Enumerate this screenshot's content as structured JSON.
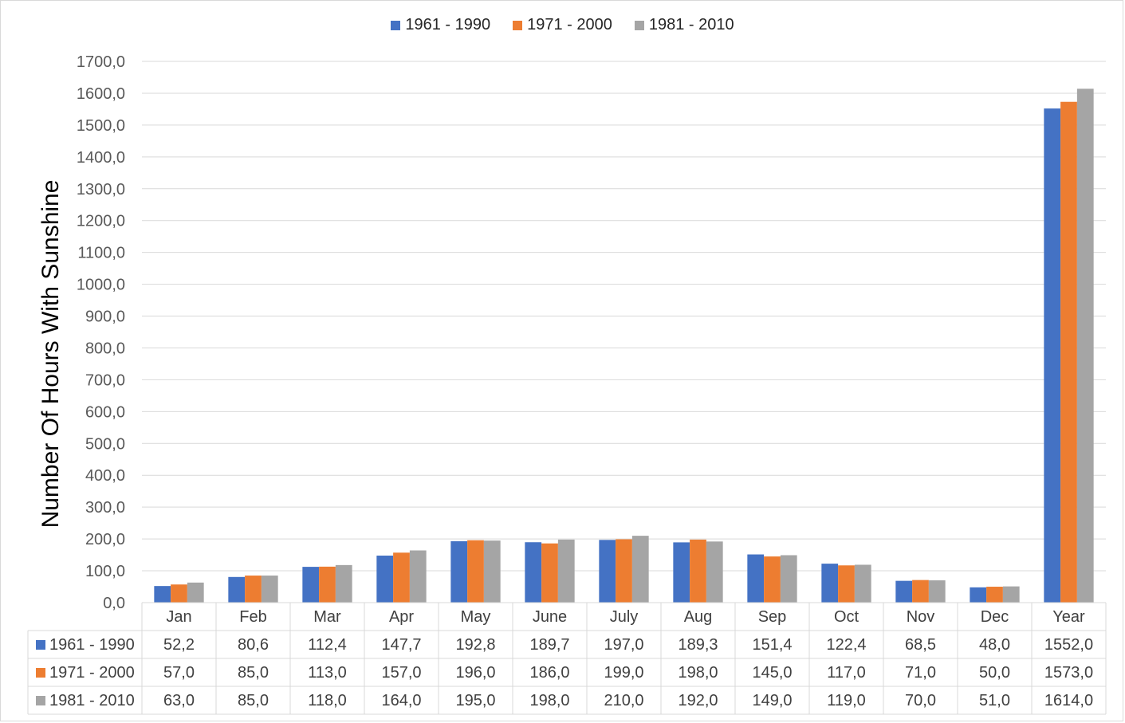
{
  "chart_data": {
    "type": "bar",
    "title": "",
    "xlabel": "",
    "ylabel": "Number Of Hours With Sunshine",
    "ylim": [
      0,
      1700
    ],
    "ytick_step": 100,
    "yticks": [
      "0,0",
      "100,0",
      "200,0",
      "300,0",
      "400,0",
      "500,0",
      "600,0",
      "700,0",
      "800,0",
      "900,0",
      "1000,0",
      "1100,0",
      "1200,0",
      "1300,0",
      "1400,0",
      "1500,0",
      "1600,0",
      "1700,0"
    ],
    "grid": true,
    "legend_position": "top-center",
    "data_table": true,
    "categories": [
      "Jan",
      "Feb",
      "Mar",
      "Apr",
      "May",
      "June",
      "July",
      "Aug",
      "Sep",
      "Oct",
      "Nov",
      "Dec",
      "Year"
    ],
    "series": [
      {
        "name": "1961 - 1990",
        "color": "#4472C4",
        "values": [
          52.2,
          80.6,
          112.4,
          147.7,
          192.8,
          189.7,
          197.0,
          189.3,
          151.4,
          122.4,
          68.5,
          48.0,
          1552.0
        ],
        "labels": [
          "52,2",
          "80,6",
          "112,4",
          "147,7",
          "192,8",
          "189,7",
          "197,0",
          "189,3",
          "151,4",
          "122,4",
          "68,5",
          "48,0",
          "1552,0"
        ]
      },
      {
        "name": "1971 - 2000",
        "color": "#ED7D31",
        "values": [
          57.0,
          85.0,
          113.0,
          157.0,
          196.0,
          186.0,
          199.0,
          198.0,
          145.0,
          117.0,
          71.0,
          50.0,
          1573.0
        ],
        "labels": [
          "57,0",
          "85,0",
          "113,0",
          "157,0",
          "196,0",
          "186,0",
          "199,0",
          "198,0",
          "145,0",
          "117,0",
          "71,0",
          "50,0",
          "1573,0"
        ]
      },
      {
        "name": "1981 - 2010",
        "color": "#A5A5A5",
        "values": [
          63.0,
          85.0,
          118.0,
          164.0,
          195.0,
          198.0,
          210.0,
          192.0,
          149.0,
          119.0,
          70.0,
          51.0,
          1614.0
        ],
        "labels": [
          "63,0",
          "85,0",
          "118,0",
          "164,0",
          "195,0",
          "198,0",
          "210,0",
          "192,0",
          "149,0",
          "119,0",
          "70,0",
          "51,0",
          "1614,0"
        ]
      }
    ]
  }
}
